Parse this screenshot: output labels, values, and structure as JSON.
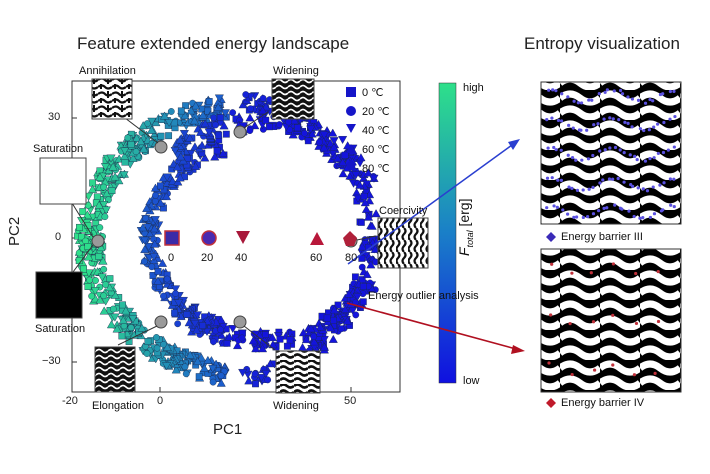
{
  "figure": {
    "left_title": "Feature extended energy landscape",
    "right_title": "Entropy visualization",
    "x_axis_label": "PC1",
    "y_axis_label": "PC2",
    "x_ticks": [
      "-20",
      "0",
      "50"
    ],
    "y_ticks": [
      "30",
      "0",
      "−30"
    ],
    "legend": [
      {
        "symbol": "square",
        "label": "0  ℃"
      },
      {
        "symbol": "circle",
        "label": "20 ℃"
      },
      {
        "symbol": "triangle-down",
        "label": "40 ℃"
      },
      {
        "symbol": "triangle-up",
        "label": "60 ℃"
      },
      {
        "symbol": "pentagon",
        "label": "80 ℃"
      }
    ],
    "center_markers": [
      "0",
      "20",
      "40",
      "60",
      "80"
    ],
    "colorbar": {
      "top": "high",
      "bottom": "low",
      "label_main": "F",
      "label_sub": "total",
      "label_unit": " [erg]"
    },
    "insets": {
      "annihilation": "Annihilation",
      "widening_top": "Widening",
      "saturation_top": "Saturation",
      "saturation_bottom": "Saturation",
      "coercivity": "Coercivity",
      "elongation": "Elongation",
      "widening_bottom": "Widening"
    },
    "outlier_text": "Energy outlier analysis",
    "barrier_3": "Energy barrier III",
    "barrier_4": "Energy barrier IV",
    "colors": {
      "blue": "#1a1ad8",
      "green": "#2ee08a",
      "red": "#c01a2a",
      "arrow_blue": "#2a3fd0",
      "arrow_red": "#b01020"
    }
  }
}
